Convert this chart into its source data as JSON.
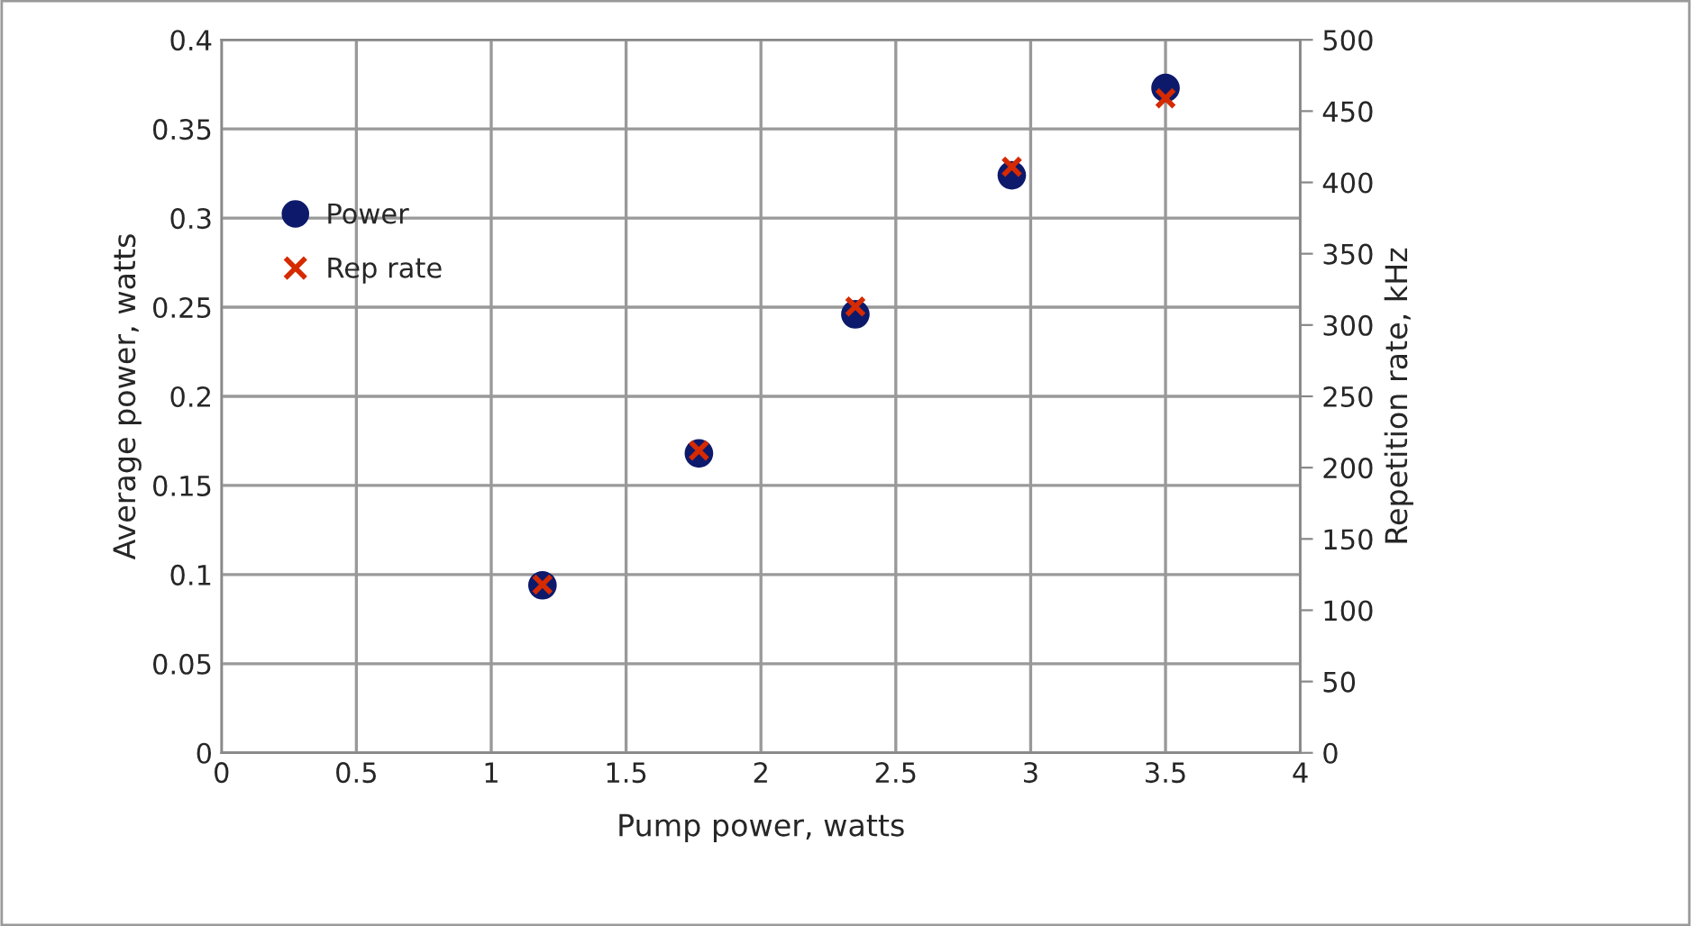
{
  "chart_data": {
    "type": "scatter",
    "xlabel": "Pump power, watts",
    "ylabel": "Average power, watts",
    "y2label": "Repetition rate, kHz",
    "x": [
      1.19,
      1.77,
      2.35,
      2.93,
      3.5
    ],
    "series": [
      {
        "name": "Power",
        "color": "#0d1a6b",
        "marker": "circle",
        "values": [
          0.094,
          0.168,
          0.246,
          0.324,
          0.373
        ]
      },
      {
        "name": "Rep rate",
        "color": "#d62a00",
        "marker": "cross",
        "axis": "y2",
        "values": [
          118,
          212,
          313,
          411,
          459
        ]
      }
    ],
    "xlim": [
      0,
      4
    ],
    "xticks": [
      0,
      0.5,
      1,
      1.5,
      2,
      2.5,
      3,
      3.5,
      4
    ],
    "ylim": [
      0,
      0.4
    ],
    "yticks": [
      0,
      0.05,
      0.1,
      0.15,
      0.2,
      0.25,
      0.3,
      0.35,
      0.4
    ],
    "y2lim": [
      0,
      500
    ],
    "y2ticks": [
      0,
      50,
      100,
      150,
      200,
      250,
      300,
      350,
      400,
      450,
      500
    ],
    "grid": true,
    "legend": "left"
  }
}
